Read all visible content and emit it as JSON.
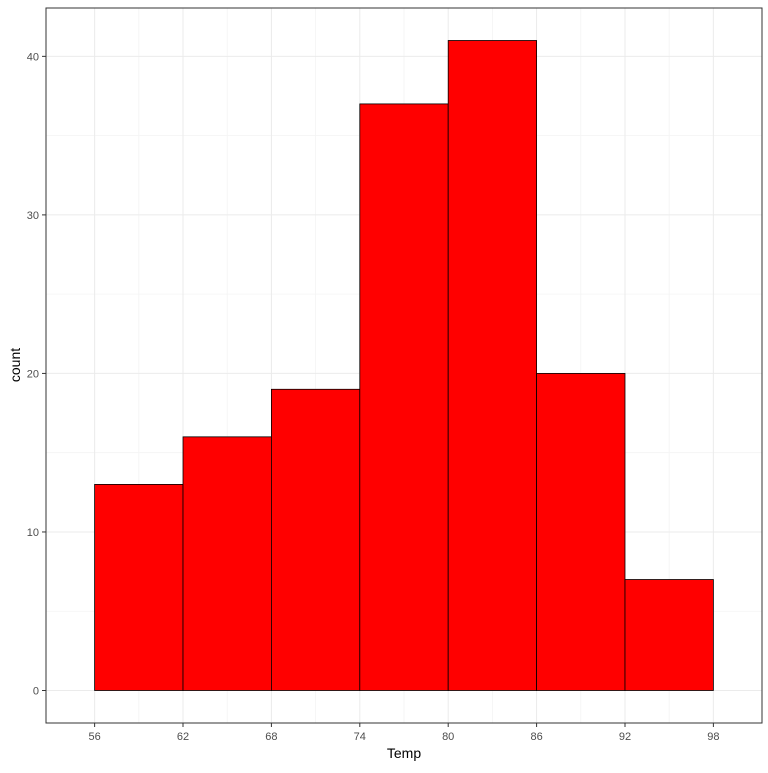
{
  "chart_data": {
    "type": "bar",
    "subtype": "histogram",
    "bins": [
      {
        "x_start": 56,
        "x_end": 62,
        "count": 13
      },
      {
        "x_start": 62,
        "x_end": 68,
        "count": 16
      },
      {
        "x_start": 68,
        "x_end": 74,
        "count": 19
      },
      {
        "x_start": 74,
        "x_end": 80,
        "count": 37
      },
      {
        "x_start": 80,
        "x_end": 86,
        "count": 41
      },
      {
        "x_start": 86,
        "x_end": 92,
        "count": 20
      },
      {
        "x_start": 92,
        "x_end": 98,
        "count": 7
      }
    ],
    "xlabel": "Temp",
    "ylabel": "count",
    "x_ticks": [
      56,
      62,
      68,
      74,
      80,
      86,
      92,
      98
    ],
    "y_ticks": [
      0,
      10,
      20,
      30,
      40
    ],
    "xlim": [
      52.7,
      101.3
    ],
    "ylim": [
      -2.05,
      43.05
    ],
    "grid": true,
    "bar_fill": "#ff0000",
    "bar_outline": "#000000"
  }
}
